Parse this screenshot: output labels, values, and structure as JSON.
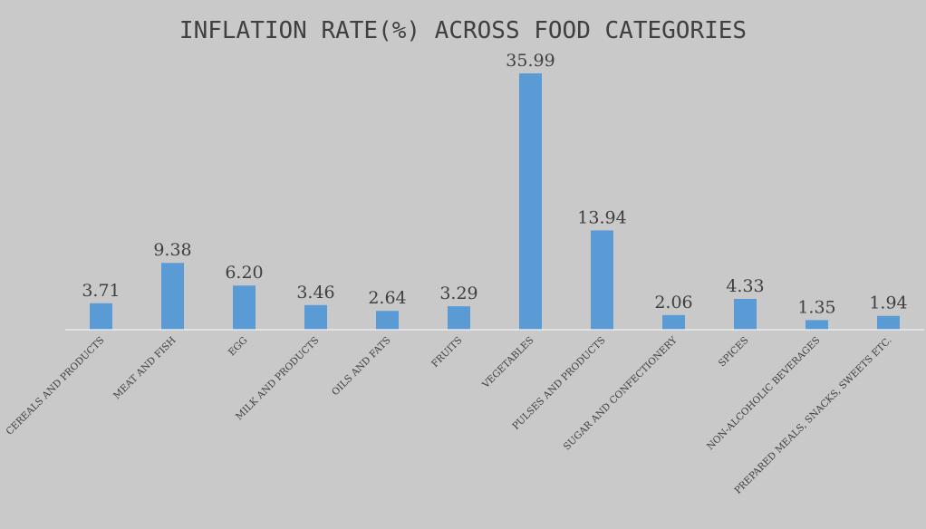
{
  "chart_data": {
    "type": "bar",
    "title": "INFLATION RATE(%) ACROSS FOOD CATEGORIES",
    "xlabel": "",
    "ylabel": "",
    "categories": [
      "CEREALS AND PRODUCTS",
      "MEAT AND FISH",
      "EGG",
      "MILK AND PRODUCTS",
      "OILS AND FATS",
      "FRUITS",
      "VEGETABLES",
      "PULSES AND PRODUCTS",
      "SUGAR AND CONFECTIONERY",
      "SPICES",
      "NON-ALCOHOLIC BEVERAGES",
      "PREPARED MEALS, SNACKS, SWEETS ETC."
    ],
    "values": [
      3.71,
      9.38,
      6.2,
      3.46,
      2.64,
      3.29,
      35.99,
      13.94,
      2.06,
      4.33,
      1.35,
      1.94
    ],
    "value_labels": [
      "3.71",
      "9.38",
      "6.20",
      "3.46",
      "2.64",
      "3.29",
      "35.99",
      "13.94",
      "2.06",
      "4.33",
      "1.35",
      "1.94"
    ],
    "ylim": [
      0,
      35.99
    ],
    "grid": false,
    "legend": "none",
    "colors": {
      "bar": "#5b9bd5",
      "axis": "#f2f2f2",
      "text": "#404040",
      "background": "#c9c9c9"
    }
  }
}
